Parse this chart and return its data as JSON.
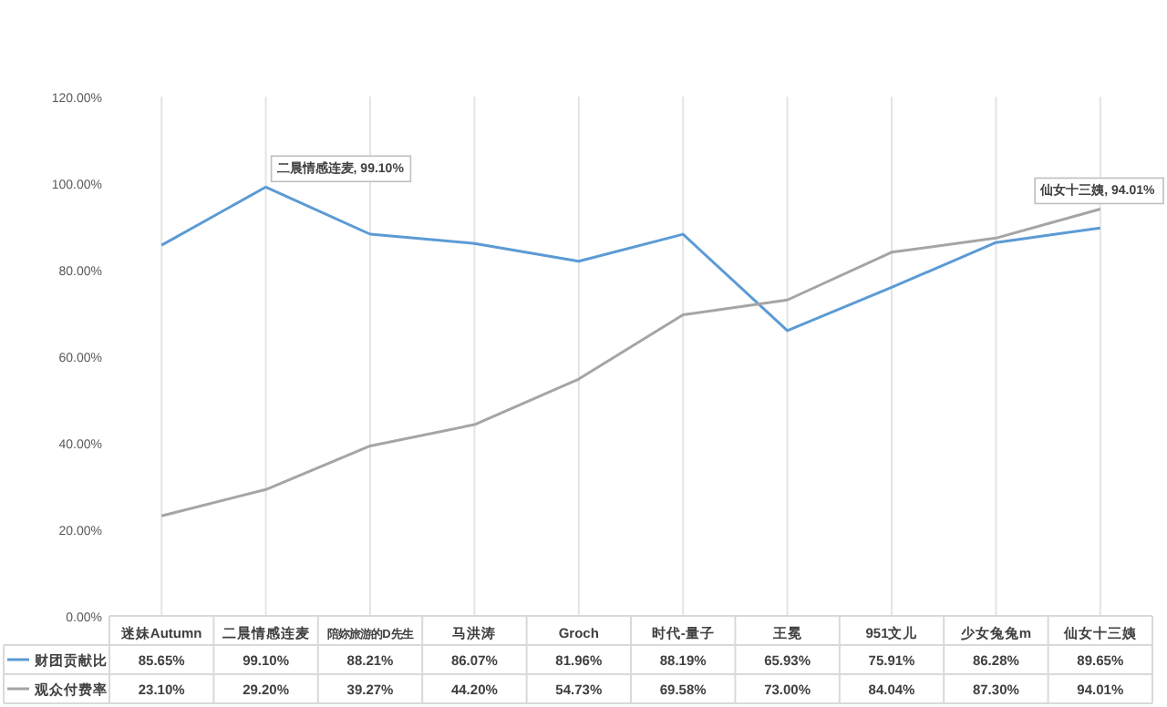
{
  "chart_data": {
    "type": "line",
    "categories": [
      "迷妹Autumn",
      "二晨情感连麦",
      "陪妳旅游的D先生",
      "马洪涛",
      "Groch",
      "时代-量子",
      "王冕",
      "951文儿",
      "少女兔兔m",
      "仙女十三姨"
    ],
    "series": [
      {
        "name": "财团贡献比",
        "color": "#5b9bd5",
        "values": [
          85.65,
          99.1,
          88.21,
          86.07,
          81.96,
          88.19,
          65.93,
          75.91,
          86.28,
          89.65
        ],
        "value_labels": [
          "85.65%",
          "99.10%",
          "88.21%",
          "86.07%",
          "81.96%",
          "88.19%",
          "65.93%",
          "75.91%",
          "86.28%",
          "89.65%"
        ]
      },
      {
        "name": "观众付费率",
        "color": "#a5a5a5",
        "values": [
          23.1,
          29.2,
          39.27,
          44.2,
          54.73,
          69.58,
          73.0,
          84.04,
          87.3,
          94.01
        ],
        "value_labels": [
          "23.10%",
          "29.20%",
          "39.27%",
          "44.20%",
          "54.73%",
          "69.58%",
          "73.00%",
          "84.04%",
          "87.30%",
          "94.01%"
        ]
      }
    ],
    "ylim": [
      0,
      120
    ],
    "yticks": [
      {
        "value": 0,
        "label": "0.00%"
      },
      {
        "value": 20,
        "label": "20.00%"
      },
      {
        "value": 40,
        "label": "40.00%"
      },
      {
        "value": 60,
        "label": "60.00%"
      },
      {
        "value": 80,
        "label": "80.00%"
      },
      {
        "value": 100,
        "label": "100.00%"
      },
      {
        "value": 120,
        "label": "120.00%"
      }
    ],
    "grid": "x",
    "legend": "bottom",
    "annotations": [
      {
        "text": "二晨情感连麦, 99.10%",
        "x": "二晨情感连麦",
        "y": 99.1
      },
      {
        "text": "仙女十三姨, 94.01%",
        "x": "仙女十三姨",
        "y": 94.01
      }
    ]
  }
}
